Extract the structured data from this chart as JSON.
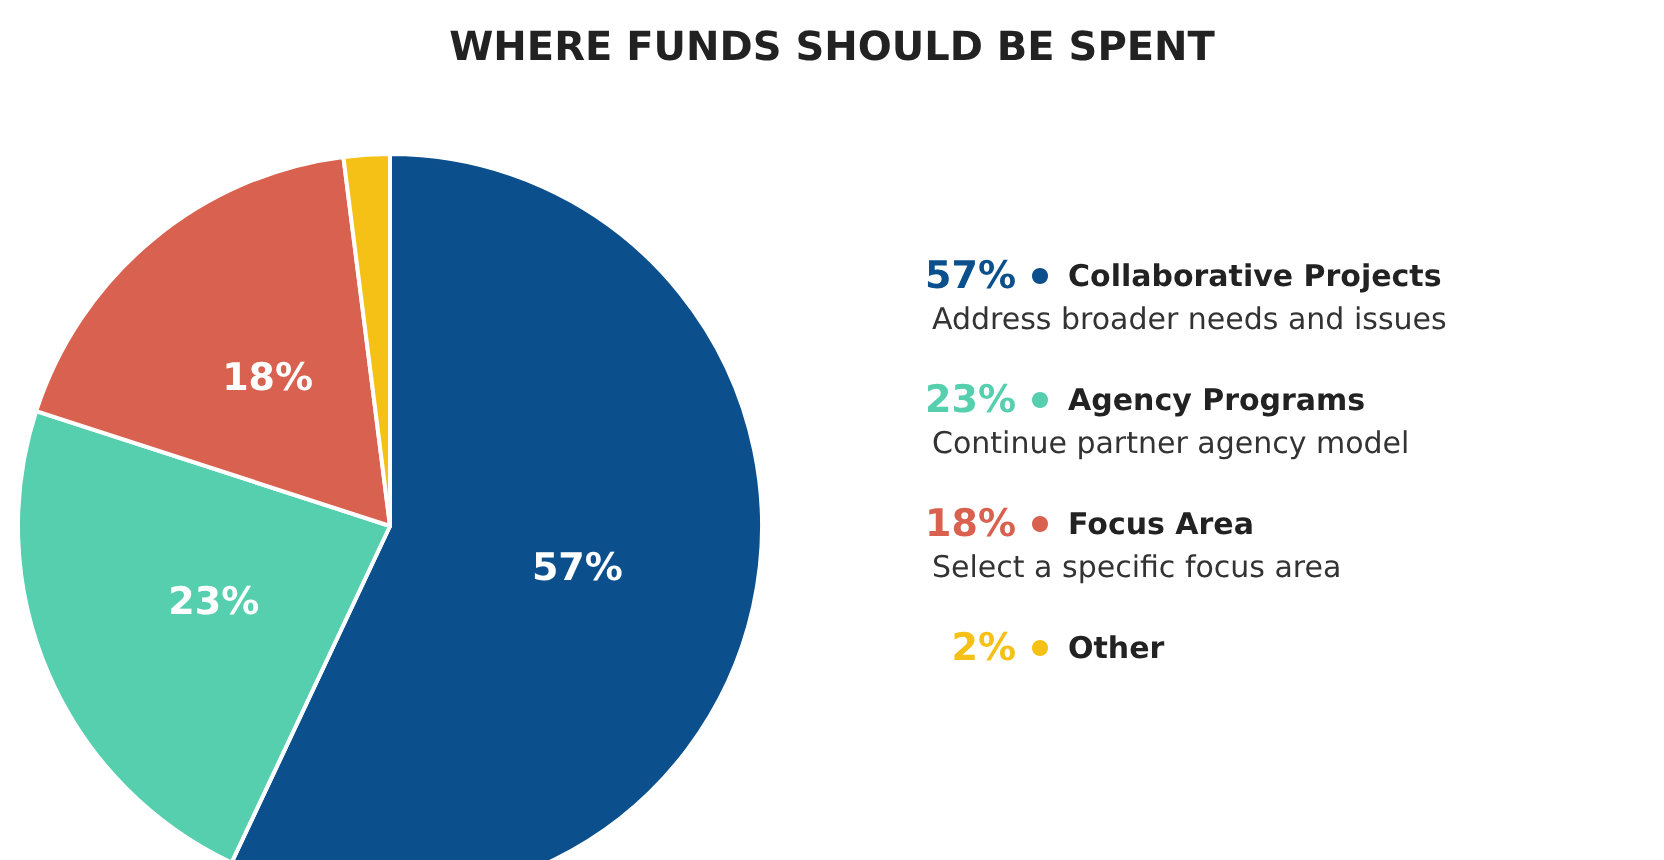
{
  "chart_data": {
    "type": "pie",
    "title": "WHERE FUNDS SHOULD BE SPENT",
    "categories": [
      "Collaborative Projects",
      "Agency Programs",
      "Focus Area",
      "Other"
    ],
    "values": [
      57,
      23,
      18,
      2
    ],
    "colors": [
      "#0b4f8c",
      "#55cfae",
      "#d9614f",
      "#f5c116"
    ],
    "value_labels": [
      "57%",
      "23%",
      "18%",
      "2%"
    ],
    "annotations": [
      "Address broader needs and issues",
      "Continue partner agency model",
      "Select a specific focus area"
    ],
    "legend": "right"
  }
}
